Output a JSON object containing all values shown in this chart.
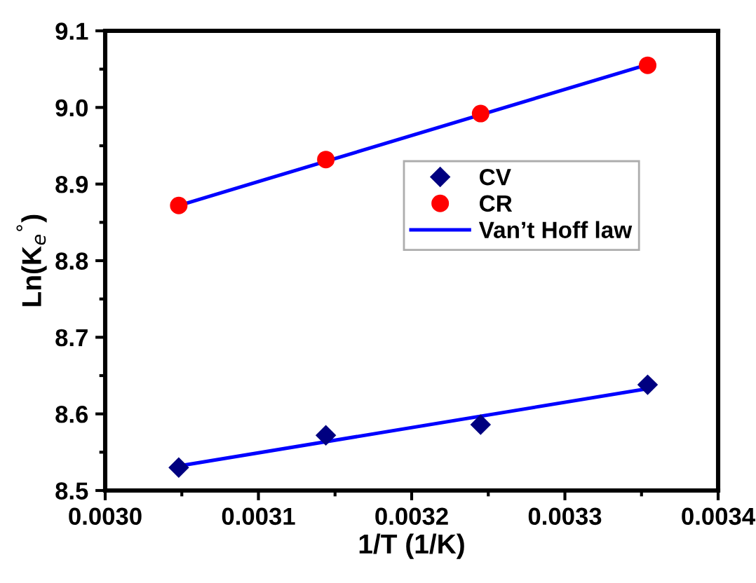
{
  "chart_data": {
    "type": "scatter",
    "xlabel": "1/T (1/K)",
    "ylabel": "Ln(K$_{e}$$^{°}$)",
    "xlim": [
      0.003,
      0.0034
    ],
    "xticks": [
      {
        "value": 0.003,
        "label": "0.0030"
      },
      0.0031,
      0.0032,
      0.0033,
      0.0034
    ],
    "ylim": [
      8.5,
      9.1
    ],
    "yticks": [
      8.5,
      8.6,
      8.7,
      8.8,
      8.9,
      {
        "value": 9.0,
        "label": "9.0"
      },
      9.1
    ],
    "legend": "right",
    "series": [
      {
        "name": "CV",
        "marker": "diamond",
        "color": "#000080",
        "x": [
          0.003048,
          0.003144,
          0.003245,
          0.003354
        ],
        "values": [
          8.53,
          8.572,
          8.586,
          8.638
        ]
      },
      {
        "name": "CR",
        "marker": "circle",
        "color": "#ff0000",
        "x": [
          0.003048,
          0.003144,
          0.003245,
          0.003354
        ],
        "values": [
          8.872,
          8.932,
          8.992,
          9.055
        ]
      },
      {
        "name": "Van’t Hoff law",
        "type": "line",
        "color": "#0000ff",
        "x": [
          0.003048,
          0.003354
        ],
        "values": [
          8.872,
          9.056
        ]
      },
      {
        "type": "line",
        "color": "#0000ff",
        "x": [
          0.003048,
          0.003354
        ],
        "values": [
          8.532,
          8.633
        ]
      }
    ]
  }
}
